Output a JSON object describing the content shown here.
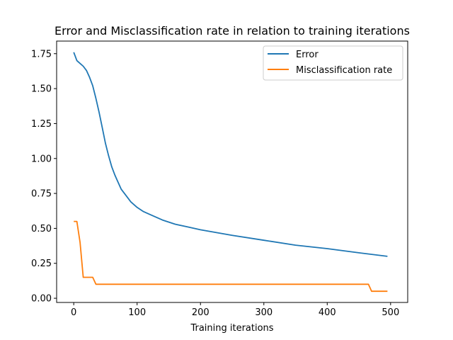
{
  "chart_data": {
    "type": "line",
    "title": "Error and Misclassification rate in relation to training iterations",
    "xlabel": "Training iterations",
    "ylabel": "",
    "xlim": [
      -27,
      527
    ],
    "ylim": [
      -0.03,
      1.84
    ],
    "xticks": [
      0,
      100,
      200,
      300,
      400,
      500
    ],
    "yticks": [
      0.0,
      0.25,
      0.5,
      0.75,
      1.0,
      1.25,
      1.5,
      1.75
    ],
    "xtick_labels": [
      "0",
      "100",
      "200",
      "300",
      "400",
      "500"
    ],
    "ytick_labels": [
      "0.00",
      "0.25",
      "0.50",
      "0.75",
      "1.00",
      "1.25",
      "1.50",
      "1.75"
    ],
    "grid": false,
    "legend_position": "top-right",
    "series": [
      {
        "name": "Error",
        "color": "#1f77b4",
        "x": [
          0,
          5,
          10,
          15,
          20,
          25,
          30,
          35,
          40,
          45,
          50,
          55,
          60,
          65,
          70,
          75,
          80,
          90,
          100,
          110,
          120,
          140,
          160,
          180,
          200,
          250,
          300,
          350,
          400,
          450,
          495
        ],
        "y": [
          1.76,
          1.7,
          1.68,
          1.66,
          1.63,
          1.58,
          1.52,
          1.43,
          1.33,
          1.22,
          1.11,
          1.02,
          0.94,
          0.88,
          0.83,
          0.78,
          0.75,
          0.69,
          0.65,
          0.62,
          0.6,
          0.56,
          0.53,
          0.51,
          0.49,
          0.45,
          0.415,
          0.38,
          0.355,
          0.325,
          0.3
        ]
      },
      {
        "name": "Misclassification rate",
        "color": "#ff7f0e",
        "x": [
          0,
          5,
          10,
          15,
          20,
          25,
          30,
          35,
          40,
          465,
          470,
          495
        ],
        "y": [
          0.55,
          0.55,
          0.4,
          0.15,
          0.15,
          0.15,
          0.15,
          0.1,
          0.1,
          0.1,
          0.05,
          0.05
        ]
      }
    ]
  }
}
